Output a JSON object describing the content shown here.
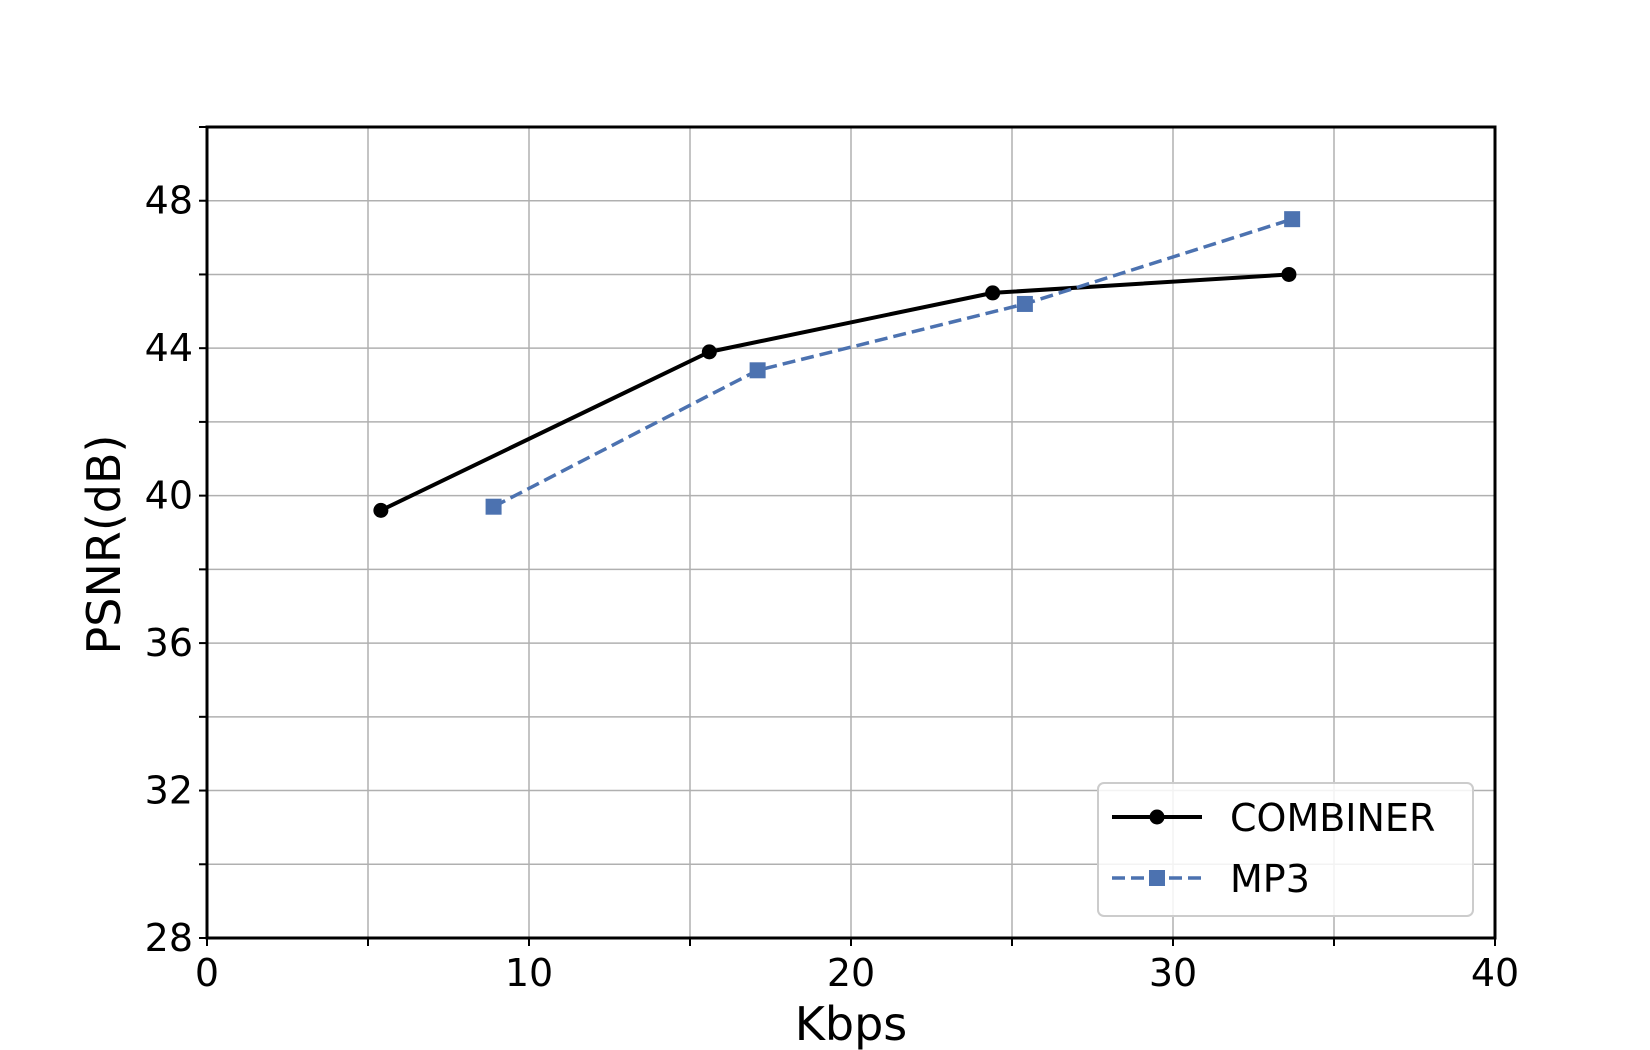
{
  "chart_data": {
    "type": "line",
    "title": "",
    "xlabel": "Kbps",
    "ylabel": "PSNR(dB)",
    "xlim": [
      0,
      40
    ],
    "ylim": [
      28,
      50
    ],
    "xticks": [
      0,
      10,
      20,
      30,
      40
    ],
    "yticks": [
      28,
      32,
      36,
      40,
      44,
      48
    ],
    "grid": true,
    "legend_position": "bottom-right",
    "series": [
      {
        "name": "COMBINER",
        "color": "#000000",
        "line_style": "solid",
        "marker": "circle",
        "x": [
          5.4,
          15.6,
          24.4,
          33.6
        ],
        "y": [
          39.6,
          43.9,
          45.5,
          46.0
        ]
      },
      {
        "name": "MP3",
        "color": "#4c72b0",
        "line_style": "dashed",
        "marker": "square",
        "x": [
          8.9,
          17.1,
          25.4,
          33.7
        ],
        "y": [
          39.7,
          43.4,
          45.2,
          47.5
        ]
      }
    ]
  }
}
